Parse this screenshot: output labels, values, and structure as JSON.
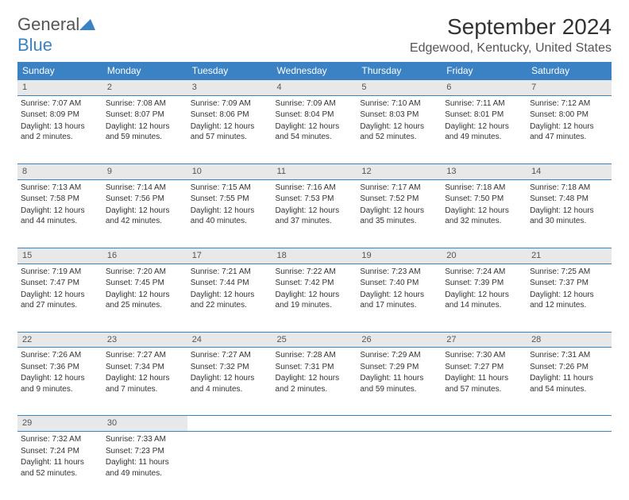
{
  "logo": {
    "text1": "General",
    "text2": "Blue"
  },
  "title": "September 2024",
  "location": "Edgewood, Kentucky, United States",
  "colors": {
    "header_bg": "#3b82c4",
    "header_text": "#ffffff",
    "daynum_bg": "#e8e8e8",
    "border": "#3b82c4",
    "text": "#333333",
    "logo_blue": "#3b82c4"
  },
  "typography": {
    "title_fontsize": 28,
    "location_fontsize": 16,
    "weekday_fontsize": 12,
    "daynum_fontsize": 11,
    "cell_fontsize": 10
  },
  "weekdays": [
    "Sunday",
    "Monday",
    "Tuesday",
    "Wednesday",
    "Thursday",
    "Friday",
    "Saturday"
  ],
  "weeks": [
    [
      {
        "n": "1",
        "sunrise": "7:07 AM",
        "sunset": "8:09 PM",
        "daylight": "13 hours and 2 minutes."
      },
      {
        "n": "2",
        "sunrise": "7:08 AM",
        "sunset": "8:07 PM",
        "daylight": "12 hours and 59 minutes."
      },
      {
        "n": "3",
        "sunrise": "7:09 AM",
        "sunset": "8:06 PM",
        "daylight": "12 hours and 57 minutes."
      },
      {
        "n": "4",
        "sunrise": "7:09 AM",
        "sunset": "8:04 PM",
        "daylight": "12 hours and 54 minutes."
      },
      {
        "n": "5",
        "sunrise": "7:10 AM",
        "sunset": "8:03 PM",
        "daylight": "12 hours and 52 minutes."
      },
      {
        "n": "6",
        "sunrise": "7:11 AM",
        "sunset": "8:01 PM",
        "daylight": "12 hours and 49 minutes."
      },
      {
        "n": "7",
        "sunrise": "7:12 AM",
        "sunset": "8:00 PM",
        "daylight": "12 hours and 47 minutes."
      }
    ],
    [
      {
        "n": "8",
        "sunrise": "7:13 AM",
        "sunset": "7:58 PM",
        "daylight": "12 hours and 44 minutes."
      },
      {
        "n": "9",
        "sunrise": "7:14 AM",
        "sunset": "7:56 PM",
        "daylight": "12 hours and 42 minutes."
      },
      {
        "n": "10",
        "sunrise": "7:15 AM",
        "sunset": "7:55 PM",
        "daylight": "12 hours and 40 minutes."
      },
      {
        "n": "11",
        "sunrise": "7:16 AM",
        "sunset": "7:53 PM",
        "daylight": "12 hours and 37 minutes."
      },
      {
        "n": "12",
        "sunrise": "7:17 AM",
        "sunset": "7:52 PM",
        "daylight": "12 hours and 35 minutes."
      },
      {
        "n": "13",
        "sunrise": "7:18 AM",
        "sunset": "7:50 PM",
        "daylight": "12 hours and 32 minutes."
      },
      {
        "n": "14",
        "sunrise": "7:18 AM",
        "sunset": "7:48 PM",
        "daylight": "12 hours and 30 minutes."
      }
    ],
    [
      {
        "n": "15",
        "sunrise": "7:19 AM",
        "sunset": "7:47 PM",
        "daylight": "12 hours and 27 minutes."
      },
      {
        "n": "16",
        "sunrise": "7:20 AM",
        "sunset": "7:45 PM",
        "daylight": "12 hours and 25 minutes."
      },
      {
        "n": "17",
        "sunrise": "7:21 AM",
        "sunset": "7:44 PM",
        "daylight": "12 hours and 22 minutes."
      },
      {
        "n": "18",
        "sunrise": "7:22 AM",
        "sunset": "7:42 PM",
        "daylight": "12 hours and 19 minutes."
      },
      {
        "n": "19",
        "sunrise": "7:23 AM",
        "sunset": "7:40 PM",
        "daylight": "12 hours and 17 minutes."
      },
      {
        "n": "20",
        "sunrise": "7:24 AM",
        "sunset": "7:39 PM",
        "daylight": "12 hours and 14 minutes."
      },
      {
        "n": "21",
        "sunrise": "7:25 AM",
        "sunset": "7:37 PM",
        "daylight": "12 hours and 12 minutes."
      }
    ],
    [
      {
        "n": "22",
        "sunrise": "7:26 AM",
        "sunset": "7:36 PM",
        "daylight": "12 hours and 9 minutes."
      },
      {
        "n": "23",
        "sunrise": "7:27 AM",
        "sunset": "7:34 PM",
        "daylight": "12 hours and 7 minutes."
      },
      {
        "n": "24",
        "sunrise": "7:27 AM",
        "sunset": "7:32 PM",
        "daylight": "12 hours and 4 minutes."
      },
      {
        "n": "25",
        "sunrise": "7:28 AM",
        "sunset": "7:31 PM",
        "daylight": "12 hours and 2 minutes."
      },
      {
        "n": "26",
        "sunrise": "7:29 AM",
        "sunset": "7:29 PM",
        "daylight": "11 hours and 59 minutes."
      },
      {
        "n": "27",
        "sunrise": "7:30 AM",
        "sunset": "7:27 PM",
        "daylight": "11 hours and 57 minutes."
      },
      {
        "n": "28",
        "sunrise": "7:31 AM",
        "sunset": "7:26 PM",
        "daylight": "11 hours and 54 minutes."
      }
    ],
    [
      {
        "n": "29",
        "sunrise": "7:32 AM",
        "sunset": "7:24 PM",
        "daylight": "11 hours and 52 minutes."
      },
      {
        "n": "30",
        "sunrise": "7:33 AM",
        "sunset": "7:23 PM",
        "daylight": "11 hours and 49 minutes."
      },
      null,
      null,
      null,
      null,
      null
    ]
  ],
  "labels": {
    "sunrise": "Sunrise:",
    "sunset": "Sunset:",
    "daylight": "Daylight:"
  }
}
